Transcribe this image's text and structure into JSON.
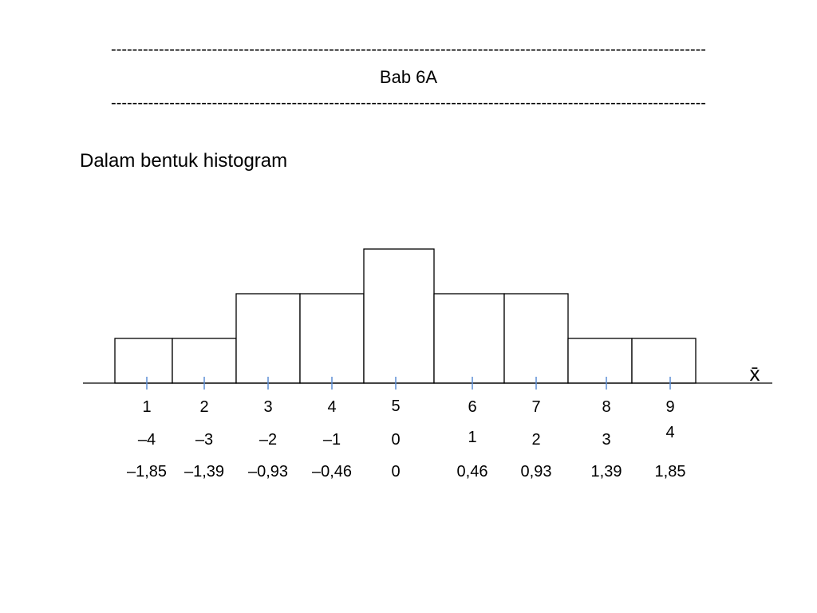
{
  "header": {
    "dash_top": "----------------------------------------------------------------------------------------------------------------",
    "title": "Bab 6A",
    "dash_bottom": "----------------------------------------------------------------------------------------------------------------"
  },
  "subtitle": "Dalam bentuk histogram",
  "chart_data": {
    "type": "bar",
    "title": "",
    "xlabel": "",
    "ylabel": "",
    "axis_symbol": "x̄",
    "categories": [
      "1",
      "2",
      "3",
      "4",
      "5",
      "6",
      "7",
      "8",
      "9"
    ],
    "values": [
      1,
      1,
      2,
      2,
      3,
      2,
      2,
      1,
      1
    ],
    "deviation_labels": [
      "–4",
      "–3",
      "–2",
      "–1",
      "0",
      "1",
      "2",
      "3",
      "4"
    ],
    "z_labels": [
      "–1,85",
      "–1,39",
      "–0,93",
      "–0,46",
      "0",
      "0,46",
      "0,93",
      "1,39",
      "1,85"
    ],
    "ylim": [
      0,
      3
    ],
    "grid": false,
    "legend": "none",
    "tick_color": "#5b8ed6"
  }
}
